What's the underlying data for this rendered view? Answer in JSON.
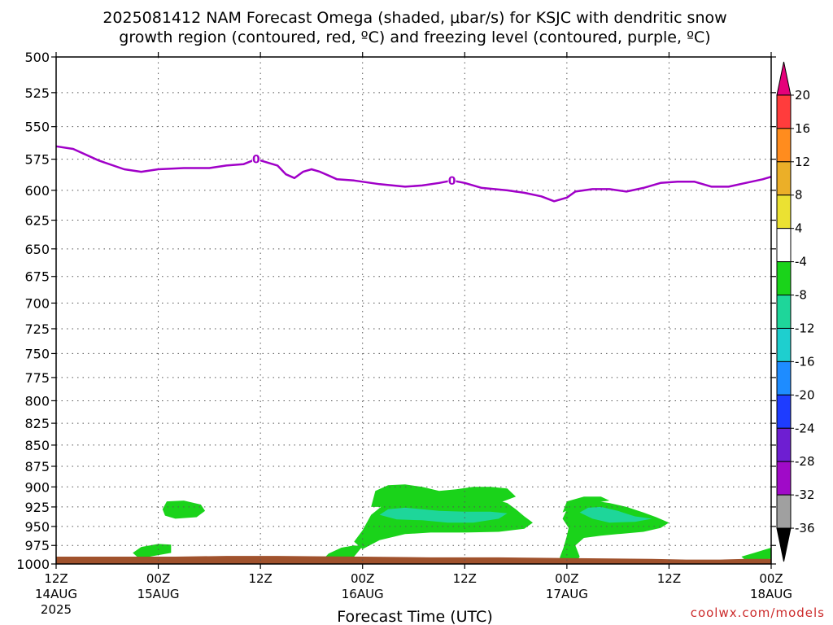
{
  "chart_data": {
    "type": "time-height cross section",
    "title_line1": "2025081412 NAM Forecast Omega (shaded, μbar/s) for KSJC with dendritic snow",
    "title_line2": "growth region (contoured, red, ºC) and freezing level (contoured, purple, ºC)",
    "xlabel": "Forecast Time (UTC)",
    "credit": "coolwx.com/models",
    "y_levels": [
      500,
      525,
      550,
      575,
      600,
      625,
      650,
      675,
      700,
      725,
      750,
      775,
      800,
      825,
      850,
      875,
      900,
      925,
      950,
      975,
      1000
    ],
    "ylim": [
      500,
      1000
    ],
    "x_range_hours": [
      0,
      84
    ],
    "x_ticks": [
      {
        "hour": 0,
        "top": "12Z",
        "mid": "14AUG",
        "bot": "2025"
      },
      {
        "hour": 12,
        "top": "00Z",
        "mid": "15AUG",
        "bot": ""
      },
      {
        "hour": 24,
        "top": "12Z",
        "mid": "",
        "bot": ""
      },
      {
        "hour": 36,
        "top": "00Z",
        "mid": "16AUG",
        "bot": ""
      },
      {
        "hour": 48,
        "top": "12Z",
        "mid": "",
        "bot": ""
      },
      {
        "hour": 60,
        "top": "00Z",
        "mid": "17AUG",
        "bot": ""
      },
      {
        "hour": 72,
        "top": "12Z",
        "mid": "",
        "bot": ""
      },
      {
        "hour": 84,
        "top": "00Z",
        "mid": "18AUG",
        "bot": ""
      }
    ],
    "grid": true,
    "freezing_level": {
      "color": "#a000c8",
      "contour_label": "0",
      "label_hours": [
        23.5,
        46.5
      ],
      "points": [
        [
          0,
          565
        ],
        [
          2,
          567
        ],
        [
          5,
          576
        ],
        [
          8,
          583
        ],
        [
          10,
          585
        ],
        [
          12,
          583
        ],
        [
          15,
          582
        ],
        [
          18,
          582
        ],
        [
          20,
          580
        ],
        [
          22,
          579
        ],
        [
          23.5,
          575
        ],
        [
          25,
          578
        ],
        [
          26,
          580
        ],
        [
          27,
          587
        ],
        [
          28,
          590
        ],
        [
          29,
          585
        ],
        [
          30,
          583
        ],
        [
          31,
          585
        ],
        [
          32,
          588
        ],
        [
          33,
          591
        ],
        [
          35,
          592
        ],
        [
          38,
          595
        ],
        [
          41,
          597
        ],
        [
          43,
          596
        ],
        [
          45,
          594
        ],
        [
          46.5,
          592
        ],
        [
          48,
          594
        ],
        [
          50,
          598
        ],
        [
          53,
          600
        ],
        [
          55,
          602
        ],
        [
          57,
          605
        ],
        [
          58.5,
          609
        ],
        [
          60,
          606
        ],
        [
          61,
          601
        ],
        [
          63,
          599
        ],
        [
          65,
          599
        ],
        [
          67,
          601
        ],
        [
          69,
          598
        ],
        [
          71,
          594
        ],
        [
          73,
          593
        ],
        [
          75,
          593
        ],
        [
          77,
          597
        ],
        [
          79,
          597
        ],
        [
          81,
          594
        ],
        [
          83,
          591
        ],
        [
          84,
          589
        ]
      ]
    },
    "omega_regions": [
      {
        "level": "-4",
        "color": "#1ad31a",
        "points": [
          [
            36,
            980
          ],
          [
            35,
            970
          ],
          [
            36,
            955
          ],
          [
            37,
            935
          ],
          [
            38.5,
            922
          ],
          [
            40,
            910
          ],
          [
            42,
            910
          ],
          [
            43,
            915
          ],
          [
            45,
            912
          ],
          [
            47,
            910
          ],
          [
            49,
            912
          ],
          [
            51,
            914
          ],
          [
            53,
            920
          ],
          [
            54,
            928
          ],
          [
            55,
            937
          ],
          [
            56,
            945
          ],
          [
            55,
            953
          ],
          [
            52,
            957
          ],
          [
            48,
            958
          ],
          [
            44,
            958
          ],
          [
            41,
            960
          ],
          [
            38,
            968
          ]
        ]
      },
      {
        "level": "-4",
        "color": "#1ad31a",
        "points": [
          [
            37,
            925
          ],
          [
            37.5,
            905
          ],
          [
            39,
            898
          ],
          [
            41,
            897
          ],
          [
            43,
            900
          ],
          [
            45,
            905
          ],
          [
            47,
            903
          ],
          [
            49,
            900
          ],
          [
            51,
            900
          ],
          [
            53,
            902
          ],
          [
            54,
            912
          ],
          [
            52,
            920
          ],
          [
            48,
            920
          ],
          [
            44,
            922
          ],
          [
            40,
            925
          ]
        ]
      },
      {
        "level": "-4",
        "color": "#1ad31a",
        "points": [
          [
            31,
            998
          ],
          [
            32,
            986
          ],
          [
            33.5,
            978
          ],
          [
            35,
            975
          ],
          [
            36,
            976
          ],
          [
            35,
            990
          ],
          [
            33,
            997
          ]
        ]
      },
      {
        "level": "-4",
        "color": "#1ad31a",
        "points": [
          [
            59,
            1000
          ],
          [
            59.2,
            990
          ],
          [
            59.6,
            978
          ],
          [
            60,
            962
          ],
          [
            60.2,
            952
          ],
          [
            59.5,
            940
          ],
          [
            60,
            928
          ],
          [
            61,
            920
          ],
          [
            63,
            917
          ],
          [
            65,
            920
          ],
          [
            67,
            925
          ],
          [
            69,
            932
          ],
          [
            70.5,
            938
          ],
          [
            72,
            945
          ],
          [
            71,
            952
          ],
          [
            69,
            957
          ],
          [
            66,
            960
          ],
          [
            64,
            962
          ],
          [
            62,
            965
          ],
          [
            61,
            975
          ],
          [
            61.5,
            990
          ],
          [
            61,
            1000
          ]
        ]
      },
      {
        "level": "-4",
        "color": "#1ad31a",
        "points": [
          [
            59.5,
            932
          ],
          [
            60,
            918
          ],
          [
            62,
            912
          ],
          [
            64,
            912
          ],
          [
            65,
            917
          ],
          [
            63,
            920
          ],
          [
            61,
            925
          ]
        ]
      },
      {
        "level": "-4",
        "color": "#1ad31a",
        "points": [
          [
            12.5,
            928
          ],
          [
            13,
            918
          ],
          [
            15,
            917
          ],
          [
            17,
            922
          ],
          [
            17.5,
            930
          ],
          [
            16.5,
            938
          ],
          [
            14,
            940
          ],
          [
            12.8,
            936
          ]
        ]
      },
      {
        "level": "-4",
        "color": "#1ad31a",
        "points": [
          [
            9,
            985
          ],
          [
            10,
            977
          ],
          [
            12,
            973
          ],
          [
            13.5,
            974
          ],
          [
            13.5,
            985
          ],
          [
            11,
            990
          ],
          [
            9.5,
            990
          ]
        ]
      },
      {
        "level": "-4",
        "color": "#1ad31a",
        "points": [
          [
            80.5,
            990
          ],
          [
            82,
            985
          ],
          [
            84,
            978
          ],
          [
            84,
            993
          ],
          [
            81,
            995
          ]
        ]
      },
      {
        "level": "-8",
        "color": "#1ed69a",
        "points": [
          [
            38,
            935
          ],
          [
            39,
            928
          ],
          [
            41,
            926
          ],
          [
            43,
            928
          ],
          [
            45,
            930
          ],
          [
            48,
            931
          ],
          [
            51,
            931
          ],
          [
            53,
            933
          ],
          [
            52,
            940
          ],
          [
            49,
            945
          ],
          [
            46,
            945
          ],
          [
            43,
            942
          ],
          [
            40,
            941
          ]
        ]
      },
      {
        "level": "-8",
        "color": "#1ed69a",
        "points": [
          [
            61.5,
            932
          ],
          [
            62.5,
            926
          ],
          [
            64,
            925
          ],
          [
            66,
            930
          ],
          [
            68,
            937
          ],
          [
            70,
            940
          ],
          [
            68,
            944
          ],
          [
            65,
            945
          ],
          [
            63,
            940
          ]
        ]
      }
    ],
    "ground": {
      "color": "#a0522d",
      "points": [
        [
          0,
          990
        ],
        [
          14,
          990
        ],
        [
          20,
          989
        ],
        [
          26,
          989
        ],
        [
          36,
          990
        ],
        [
          44,
          991
        ],
        [
          52,
          991
        ],
        [
          60,
          992
        ],
        [
          70,
          993
        ],
        [
          74,
          994
        ],
        [
          78,
          994
        ],
        [
          81,
          993
        ],
        [
          84,
          993
        ],
        [
          84,
          1000
        ],
        [
          0,
          1000
        ]
      ]
    },
    "colorbar": [
      {
        "color": "#e5007a",
        "label": "20"
      },
      {
        "color": "#ff3c3c",
        "label": "16"
      },
      {
        "color": "#ff8c1e",
        "label": "12"
      },
      {
        "color": "#ebaf28",
        "label": "8"
      },
      {
        "color": "#ebe132",
        "label": "4"
      },
      {
        "color": "#ffffff",
        "label": "-4"
      },
      {
        "color": "#1ad31a",
        "label": "-8"
      },
      {
        "color": "#1ed69a",
        "label": "-12"
      },
      {
        "color": "#1ecfcf",
        "label": "-16"
      },
      {
        "color": "#1e8cff",
        "label": "-20"
      },
      {
        "color": "#1e3cff",
        "label": "-24"
      },
      {
        "color": "#6e1ed2",
        "label": "-28"
      },
      {
        "color": "#a00ac8",
        "label": "-32"
      },
      {
        "color": "#a0a0a0",
        "label": "-36"
      },
      {
        "color": "#000000",
        "label": ""
      }
    ]
  }
}
